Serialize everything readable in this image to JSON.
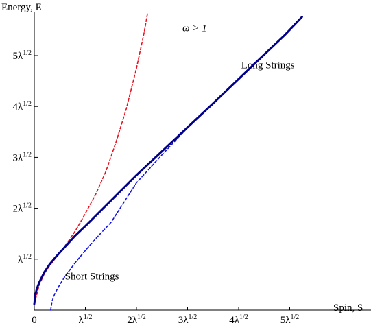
{
  "chart_data": {
    "type": "line",
    "xlabel": "Spin, S",
    "ylabel": "Energy, E",
    "xlim": [
      0,
      6.7
    ],
    "ylim": [
      0,
      5.85
    ],
    "grid": false,
    "x_tick_labels": [
      {
        "value": 0,
        "label": "0"
      },
      {
        "value": 1,
        "label": "λ1/2"
      },
      {
        "value": 2,
        "label": "2λ1/2"
      },
      {
        "value": 3,
        "label": "3λ1/2"
      },
      {
        "value": 4,
        "label": "4λ1/2"
      },
      {
        "value": 5,
        "label": "5λ1/2"
      }
    ],
    "y_tick_labels": [
      {
        "value": 1,
        "label": "λ1/2"
      },
      {
        "value": 2,
        "label": "2λ1/2"
      },
      {
        "value": 3,
        "label": "3λ1/2"
      },
      {
        "value": 4,
        "label": "4λ1/2"
      },
      {
        "value": 5,
        "label": "5λ1/2"
      }
    ],
    "annotations": [
      {
        "text": "ω > 1",
        "x": 2.9,
        "y": 5.48
      },
      {
        "text": "Long Strings",
        "x": 4.05,
        "y": 4.75
      },
      {
        "text": "Short Strings",
        "x": 0.6,
        "y": 0.6
      }
    ],
    "series": [
      {
        "style": "solid",
        "color": "#00008b",
        "points": [
          [
            0,
            0.12
          ],
          [
            0.02,
            0.3
          ],
          [
            0.05,
            0.42
          ],
          [
            0.1,
            0.55
          ],
          [
            0.2,
            0.75
          ],
          [
            0.3,
            0.9
          ],
          [
            0.4,
            1.02
          ],
          [
            0.5,
            1.13
          ],
          [
            0.6,
            1.24
          ],
          [
            0.7,
            1.35
          ],
          [
            0.8,
            1.46
          ],
          [
            1.0,
            1.65
          ],
          [
            1.2,
            1.85
          ],
          [
            1.5,
            2.15
          ],
          [
            2.0,
            2.65
          ],
          [
            2.5,
            3.12
          ],
          [
            3.0,
            3.59
          ],
          [
            3.5,
            4.06
          ],
          [
            4.0,
            4.54
          ],
          [
            4.5,
            5.02
          ],
          [
            4.9,
            5.4
          ],
          [
            5.24,
            5.76
          ]
        ]
      },
      {
        "style": "dashed",
        "color": "#e8101f",
        "points": [
          [
            0,
            0.12
          ],
          [
            0.1,
            0.5
          ],
          [
            0.2,
            0.72
          ],
          [
            0.3,
            0.87
          ],
          [
            0.4,
            1.0
          ],
          [
            0.5,
            1.12
          ],
          [
            0.6,
            1.26
          ],
          [
            0.7,
            1.4
          ],
          [
            0.8,
            1.55
          ],
          [
            0.9,
            1.72
          ],
          [
            1.0,
            1.9
          ],
          [
            1.2,
            2.27
          ],
          [
            1.4,
            2.72
          ],
          [
            1.6,
            3.3
          ],
          [
            1.8,
            3.95
          ],
          [
            2.0,
            4.75
          ],
          [
            2.15,
            5.45
          ],
          [
            2.22,
            5.85
          ]
        ]
      },
      {
        "style": "dashed",
        "color": "#1010e8",
        "points": [
          [
            0.32,
            0.0
          ],
          [
            0.35,
            0.18
          ],
          [
            0.4,
            0.32
          ],
          [
            0.5,
            0.5
          ],
          [
            0.6,
            0.66
          ],
          [
            0.8,
            0.93
          ],
          [
            1.0,
            1.17
          ],
          [
            1.2,
            1.4
          ],
          [
            1.5,
            1.72
          ],
          [
            2.0,
            2.5
          ],
          [
            2.5,
            3.05
          ],
          [
            3.0,
            3.58
          ],
          [
            3.5,
            4.06
          ],
          [
            4.0,
            4.54
          ],
          [
            4.5,
            5.02
          ],
          [
            4.9,
            5.4
          ],
          [
            5.24,
            5.76
          ]
        ]
      }
    ]
  }
}
